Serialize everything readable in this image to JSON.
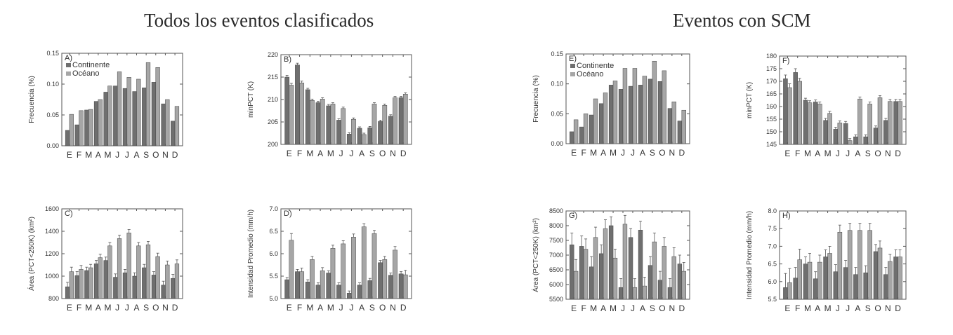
{
  "titles": {
    "left": "Todos los eventos clasificados",
    "right": "Eventos con SCM"
  },
  "month_labels": [
    "E",
    "F",
    "M",
    "A",
    "M",
    "J",
    "J",
    "A",
    "S",
    "O",
    "N",
    "D"
  ],
  "colors": {
    "continente": "#6f6f6f",
    "oceano": "#a6a6a6",
    "axis": "#555555"
  },
  "chart_data": [
    {
      "id": "A",
      "letter": "A)",
      "type": "bar",
      "ylabel": "Frecuencia (%)",
      "ylim": [
        0,
        0.15
      ],
      "yticks": [
        0,
        0.05,
        0.1,
        0.15
      ],
      "ytick_labels": [
        "0.00",
        "0.05",
        "0.10",
        "0.15"
      ],
      "legend": [
        "Continente",
        "Océano"
      ],
      "legend_position": "top-left",
      "categories": [
        "E",
        "F",
        "M",
        "A",
        "M",
        "J",
        "J",
        "A",
        "S",
        "O",
        "N",
        "D"
      ],
      "series": [
        {
          "name": "Continente",
          "values": [
            0.025,
            0.034,
            0.058,
            0.072,
            0.087,
            0.097,
            0.093,
            0.088,
            0.094,
            0.103,
            0.068,
            0.04
          ]
        },
        {
          "name": "Océano",
          "values": [
            0.051,
            0.057,
            0.059,
            0.075,
            0.097,
            0.12,
            0.111,
            0.108,
            0.135,
            0.127,
            0.075,
            0.064
          ]
        }
      ]
    },
    {
      "id": "B",
      "letter": "B)",
      "type": "bar",
      "ylabel": "minPCT (K)",
      "ylim": [
        200,
        220
      ],
      "yticks": [
        200,
        205,
        210,
        215,
        220
      ],
      "ytick_labels": [
        "200",
        "205",
        "210",
        "215",
        "220"
      ],
      "categories": [
        "E",
        "F",
        "M",
        "A",
        "M",
        "J",
        "J",
        "A",
        "S",
        "O",
        "N",
        "D"
      ],
      "series": [
        {
          "name": "Continente",
          "values": [
            215.0,
            217.7,
            212.2,
            209.3,
            208.6,
            205.4,
            202.3,
            203.6,
            203.7,
            205.1,
            206.3,
            210.4
          ],
          "errors": [
            0.4,
            0.4,
            0.3,
            0.3,
            0.3,
            0.3,
            0.3,
            0.3,
            0.3,
            0.3,
            0.3,
            0.3
          ]
        },
        {
          "name": "Océano",
          "values": [
            213.2,
            213.7,
            209.8,
            210.1,
            209.0,
            208.0,
            205.6,
            202.2,
            209.0,
            208.7,
            210.4,
            211.2
          ],
          "errors": [
            0.4,
            0.4,
            0.3,
            0.3,
            0.3,
            0.3,
            0.3,
            0.3,
            0.3,
            0.3,
            0.3,
            0.3
          ]
        }
      ]
    },
    {
      "id": "C",
      "letter": "C)",
      "type": "bar",
      "ylabel": "Área (PCT<250K) (km²)",
      "ylim": [
        800,
        1600
      ],
      "yticks": [
        800,
        1000,
        1200,
        1400,
        1600
      ],
      "ytick_labels": [
        "800",
        "1000",
        "1200",
        "1400",
        "1600"
      ],
      "categories": [
        "E",
        "F",
        "M",
        "A",
        "M",
        "J",
        "J",
        "A",
        "S",
        "O",
        "N",
        "D"
      ],
      "series": [
        {
          "name": "Continente",
          "values": [
            905,
            1005,
            1050,
            1110,
            1140,
            990,
            1030,
            1000,
            1075,
            1010,
            920,
            980
          ],
          "errors": [
            40,
            35,
            30,
            30,
            30,
            30,
            30,
            30,
            30,
            30,
            35,
            35
          ]
        },
        {
          "name": "Océano",
          "values": [
            1040,
            1060,
            1075,
            1165,
            1270,
            1335,
            1385,
            1270,
            1280,
            1175,
            1100,
            1110
          ],
          "errors": [
            40,
            35,
            30,
            30,
            30,
            30,
            30,
            30,
            30,
            30,
            35,
            35
          ]
        }
      ]
    },
    {
      "id": "D",
      "letter": "D)",
      "type": "bar",
      "ylabel": "Intensidad Promedio (mm/h)",
      "ylim": [
        5.0,
        7.0
      ],
      "yticks": [
        5.0,
        5.5,
        6.0,
        6.5,
        7.0
      ],
      "ytick_labels": [
        "5.0",
        "5.5",
        "6.0",
        "6.5",
        "7.0"
      ],
      "categories": [
        "E",
        "F",
        "M",
        "A",
        "M",
        "J",
        "J",
        "A",
        "S",
        "O",
        "N",
        "D"
      ],
      "series": [
        {
          "name": "Continente",
          "values": [
            5.42,
            5.6,
            5.37,
            5.3,
            5.57,
            5.3,
            5.12,
            5.3,
            5.4,
            5.8,
            5.52,
            5.55
          ],
          "errors": [
            0.05,
            0.05,
            0.05,
            0.05,
            0.05,
            0.05,
            0.05,
            0.05,
            0.05,
            0.05,
            0.05,
            0.05
          ]
        },
        {
          "name": "Océano",
          "values": [
            6.3,
            5.6,
            5.87,
            5.62,
            6.12,
            6.22,
            6.37,
            6.6,
            6.45,
            5.87,
            6.08,
            5.53
          ],
          "errors": [
            0.15,
            0.08,
            0.07,
            0.07,
            0.07,
            0.07,
            0.07,
            0.07,
            0.07,
            0.07,
            0.08,
            0.1
          ]
        }
      ]
    },
    {
      "id": "E",
      "letter": "E)",
      "type": "bar",
      "ylabel": "Frecuencia (%)",
      "ylim": [
        0,
        0.15
      ],
      "yticks": [
        0,
        0.05,
        0.1,
        0.15
      ],
      "ytick_labels": [
        "0.00",
        "0.05",
        "0.10",
        "0.15"
      ],
      "legend": [
        "Continente",
        "Océano"
      ],
      "legend_position": "top-left",
      "categories": [
        "E",
        "F",
        "M",
        "A",
        "M",
        "J",
        "J",
        "A",
        "S",
        "O",
        "N",
        "D"
      ],
      "series": [
        {
          "name": "Continente",
          "values": [
            0.02,
            0.028,
            0.048,
            0.067,
            0.098,
            0.091,
            0.096,
            0.098,
            0.108,
            0.104,
            0.059,
            0.038
          ]
        },
        {
          "name": "Océano",
          "values": [
            0.04,
            0.05,
            0.075,
            0.085,
            0.105,
            0.126,
            0.126,
            0.113,
            0.138,
            0.122,
            0.07,
            0.056
          ]
        }
      ]
    },
    {
      "id": "F",
      "letter": "F)",
      "type": "bar",
      "ylabel": "minPCT (K)",
      "ylim": [
        145,
        180
      ],
      "yticks": [
        145,
        150,
        155,
        160,
        165,
        170,
        175,
        180
      ],
      "ytick_labels": [
        "145",
        "150",
        "155",
        "160",
        "165",
        "170",
        "175",
        "180"
      ],
      "categories": [
        "E",
        "F",
        "M",
        "A",
        "M",
        "J",
        "J",
        "A",
        "S",
        "O",
        "N",
        "D"
      ],
      "series": [
        {
          "name": "Continente",
          "values": [
            171,
            173.5,
            162.5,
            161.8,
            154.5,
            151,
            153.3,
            148,
            148,
            151.5,
            154.5,
            162
          ],
          "errors": [
            1.5,
            1.5,
            0.8,
            0.8,
            0.8,
            0.8,
            0.8,
            0.8,
            0.8,
            0.8,
            0.8,
            0.8
          ]
        },
        {
          "name": "Océano",
          "values": [
            167.5,
            170,
            161.5,
            161,
            157.3,
            153.5,
            146.5,
            163,
            161,
            163.5,
            162,
            162
          ],
          "errors": [
            1.5,
            1.2,
            0.8,
            0.8,
            0.8,
            0.8,
            0.8,
            0.8,
            0.8,
            0.8,
            0.8,
            0.8
          ]
        }
      ]
    },
    {
      "id": "G",
      "letter": "G)",
      "type": "bar",
      "ylabel": "Área (PCT<250K) (km²)",
      "ylim": [
        5500,
        8500
      ],
      "yticks": [
        5500,
        6000,
        6500,
        7000,
        7500,
        8000,
        8500
      ],
      "ytick_labels": [
        "5500",
        "6000",
        "6500",
        "7000",
        "7500",
        "8000",
        "8500"
      ],
      "categories": [
        "E",
        "F",
        "M",
        "A",
        "M",
        "J",
        "J",
        "A",
        "S",
        "O",
        "N",
        "D"
      ],
      "series": [
        {
          "name": "Continente",
          "values": [
            7350,
            7300,
            6600,
            7050,
            8000,
            5900,
            7600,
            7850,
            6650,
            6150,
            5900,
            6700
          ],
          "errors": [
            400,
            350,
            350,
            300,
            300,
            300,
            300,
            300,
            300,
            300,
            300,
            300
          ]
        },
        {
          "name": "Océano",
          "values": [
            6450,
            7200,
            7600,
            7900,
            6900,
            8050,
            5900,
            5950,
            7450,
            7300,
            6950,
            6450
          ],
          "errors": [
            400,
            350,
            350,
            300,
            300,
            300,
            300,
            300,
            300,
            300,
            300,
            300
          ]
        }
      ]
    },
    {
      "id": "H",
      "letter": "H)",
      "type": "bar",
      "ylabel": "Intensidad Promedio (mm/h)",
      "ylim": [
        5.5,
        8.0
      ],
      "yticks": [
        5.5,
        6.0,
        6.5,
        7.0,
        7.5,
        8.0
      ],
      "ytick_labels": [
        "5.5",
        "6.0",
        "6.5",
        "7.0",
        "7.5",
        "8.0"
      ],
      "categories": [
        "E",
        "F",
        "M",
        "A",
        "M",
        "J",
        "J",
        "A",
        "S",
        "O",
        "N",
        "D"
      ],
      "series": [
        {
          "name": "Continente",
          "values": [
            5.83,
            6.1,
            6.5,
            6.08,
            6.7,
            6.28,
            6.4,
            6.2,
            6.25,
            6.85,
            6.2,
            6.7
          ],
          "errors": [
            0.4,
            0.3,
            0.2,
            0.2,
            0.2,
            0.2,
            0.2,
            0.2,
            0.2,
            0.2,
            0.2,
            0.2
          ]
        },
        {
          "name": "Océano",
          "values": [
            5.97,
            6.62,
            6.55,
            6.55,
            6.8,
            7.4,
            7.45,
            7.45,
            7.45,
            6.95,
            6.57,
            6.7
          ],
          "errors": [
            0.4,
            0.3,
            0.25,
            0.2,
            0.2,
            0.2,
            0.2,
            0.2,
            0.2,
            0.2,
            0.2,
            0.2
          ]
        }
      ]
    }
  ]
}
